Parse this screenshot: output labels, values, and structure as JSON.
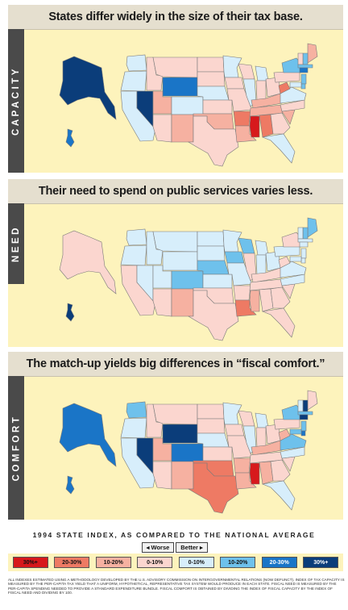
{
  "panels": [
    {
      "title": "States differ widely in the size of their tax base.",
      "side_label": "CAPACITY"
    },
    {
      "title": "Their need to spend on public services varies less.",
      "side_label": "NEED"
    },
    {
      "title": "The match-up yields big differences in “fiscal comfort.”",
      "side_label": "COMFORT"
    }
  ],
  "legend": {
    "caption": "1994 STATE INDEX, AS COMPARED TO THE NATIONAL AVERAGE",
    "worse_label": "◂ Worse",
    "better_label": "Better ▸",
    "items": [
      {
        "label": "30%+",
        "color": "#d7191c"
      },
      {
        "label": "20-30%",
        "color": "#ee7a64"
      },
      {
        "label": "10-20%",
        "color": "#f6b1a1"
      },
      {
        "label": "0-10%",
        "color": "#fbd6cf"
      },
      {
        "label": "0-10%",
        "color": "#d7eefb"
      },
      {
        "label": "10-20%",
        "color": "#6ec1ec"
      },
      {
        "label": "20-30%",
        "color": "#1a75c7"
      },
      {
        "label": "30%+",
        "color": "#0b3d7a"
      }
    ]
  },
  "footnote": "All indexes estimated using a methodology developed by the U.S. Advisory Commission on Intergovernmental Relations (now defunct). Index of tax capacity is measured by the per-capita tax yield that a uniform, hypothetical, representative tax system would produce in each state. Fiscal need is measured by the per-capita spending needed to provide a standard expenditure bundle. Fiscal comfort is obtained by dividing the index of fiscal capacity by the index of fiscal need and dividing by 100.",
  "map_categories": {
    "capacity": {
      "AK": 7,
      "HI": 6,
      "WA": 4,
      "OR": 4,
      "CA": 4,
      "NV": 7,
      "ID": 3,
      "MT": 3,
      "WY": 6,
      "UT": 2,
      "CO": 4,
      "AZ": 3,
      "NM": 2,
      "ND": 3,
      "SD": 3,
      "NE": 4,
      "KS": 3,
      "OK": 2,
      "TX": 3,
      "MN": 4,
      "IA": 3,
      "MO": 3,
      "AR": 1,
      "LA": 2,
      "WI": 3,
      "IL": 4,
      "MI": 4,
      "IN": 3,
      "OH": 3,
      "KY": 2,
      "TN": 2,
      "MS": 0,
      "AL": 1,
      "GA": 3,
      "FL": 4,
      "SC": 2,
      "NC": 3,
      "VA": 4,
      "WV": 1,
      "PA": 3,
      "NY": 5,
      "ME": 2,
      "NH": 5,
      "VT": 3,
      "MA": 5,
      "CT": 6,
      "NJ": 5,
      "DE": 5,
      "MD": 4
    },
    "need": {
      "AK": 3,
      "HI": 7,
      "WA": 4,
      "OR": 4,
      "CA": 3,
      "NV": 4,
      "ID": 4,
      "MT": 4,
      "WY": 4,
      "UT": 4,
      "CO": 5,
      "AZ": 3,
      "NM": 2,
      "ND": 4,
      "SD": 4,
      "NE": 5,
      "KS": 4,
      "OK": 3,
      "TX": 3,
      "MN": 4,
      "IA": 5,
      "MO": 4,
      "AR": 3,
      "LA": 1,
      "WI": 5,
      "IL": 3,
      "MI": 4,
      "IN": 4,
      "OH": 4,
      "KY": 3,
      "TN": 3,
      "MS": 2,
      "AL": 3,
      "GA": 3,
      "FL": 3,
      "SC": 3,
      "NC": 4,
      "VA": 4,
      "WV": 3,
      "PA": 4,
      "NY": 3,
      "ME": 5,
      "NH": 5,
      "VT": 4,
      "MA": 4,
      "CT": 4,
      "NJ": 4,
      "DE": 4,
      "MD": 4
    },
    "comfort": {
      "AK": 6,
      "HI": 6,
      "WA": 5,
      "OR": 4,
      "CA": 4,
      "NV": 7,
      "ID": 3,
      "MT": 3,
      "WY": 7,
      "UT": 2,
      "CO": 6,
      "AZ": 3,
      "NM": 2,
      "ND": 3,
      "SD": 3,
      "NE": 4,
      "KS": 3,
      "OK": 1,
      "TX": 1,
      "MN": 4,
      "IA": 3,
      "MO": 3,
      "AR": 2,
      "LA": 2,
      "WI": 3,
      "IL": 4,
      "MI": 4,
      "IN": 3,
      "OH": 3,
      "KY": 2,
      "TN": 3,
      "MS": 0,
      "AL": 2,
      "GA": 3,
      "FL": 4,
      "SC": 3,
      "NC": 4,
      "VA": 5,
      "WV": 2,
      "PA": 3,
      "NY": 5,
      "ME": 3,
      "NH": 7,
      "VT": 4,
      "MA": 5,
      "CT": 7,
      "NJ": 5,
      "DE": 6,
      "MD": 5
    }
  }
}
